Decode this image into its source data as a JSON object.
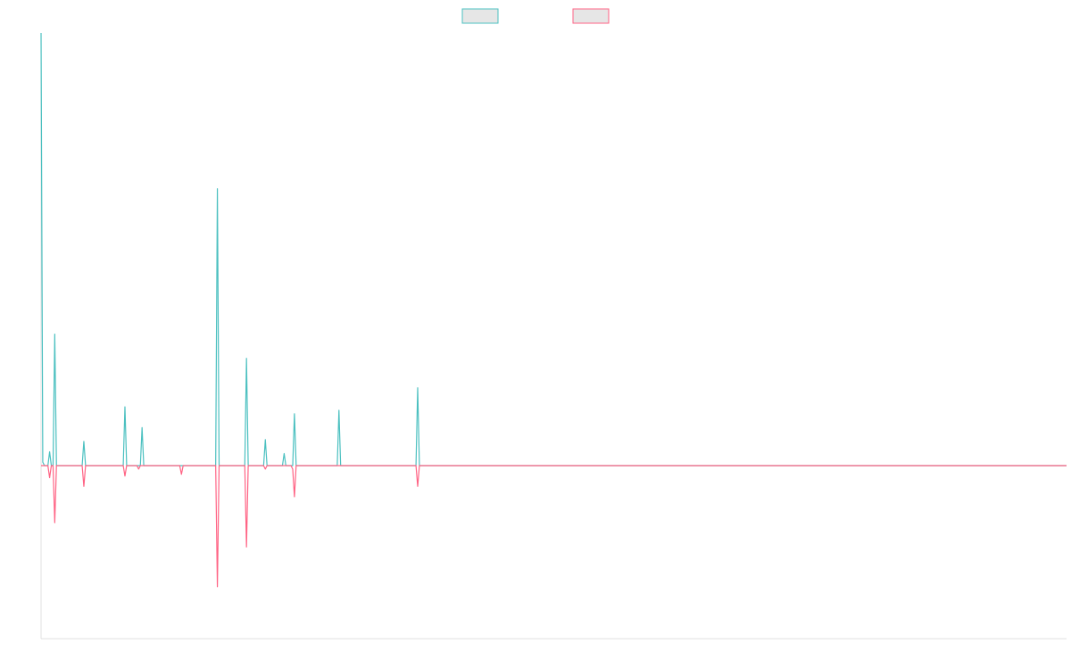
{
  "chart_data": {
    "type": "line",
    "title": "",
    "xlabel": "",
    "ylabel": "",
    "grid": false,
    "legend_position": "top-center",
    "x_count": 600,
    "ylim": [
      -100,
      250
    ],
    "series": [
      {
        "key": "positive",
        "name": "",
        "color": "#4bc0c0",
        "fill": "#e6e6e6",
        "points": [
          [
            0,
            250
          ],
          [
            1,
            2
          ],
          [
            5,
            8
          ],
          [
            8,
            76
          ],
          [
            25,
            14
          ],
          [
            49,
            34
          ],
          [
            59,
            22
          ],
          [
            103,
            160
          ],
          [
            120,
            62
          ],
          [
            131,
            15
          ],
          [
            142,
            7
          ],
          [
            148,
            30
          ],
          [
            174,
            32
          ],
          [
            220,
            45
          ]
        ]
      },
      {
        "key": "negative",
        "name": "",
        "color": "#ff6384",
        "fill": "#e6e6e6",
        "points": [
          [
            5,
            -7
          ],
          [
            8,
            -33
          ],
          [
            25,
            -12
          ],
          [
            49,
            -6
          ],
          [
            57,
            -2
          ],
          [
            82,
            -5
          ],
          [
            103,
            -70
          ],
          [
            120,
            -47
          ],
          [
            131,
            -2
          ],
          [
            147,
            -2
          ],
          [
            148,
            -18
          ],
          [
            220,
            -12
          ]
        ]
      }
    ]
  }
}
